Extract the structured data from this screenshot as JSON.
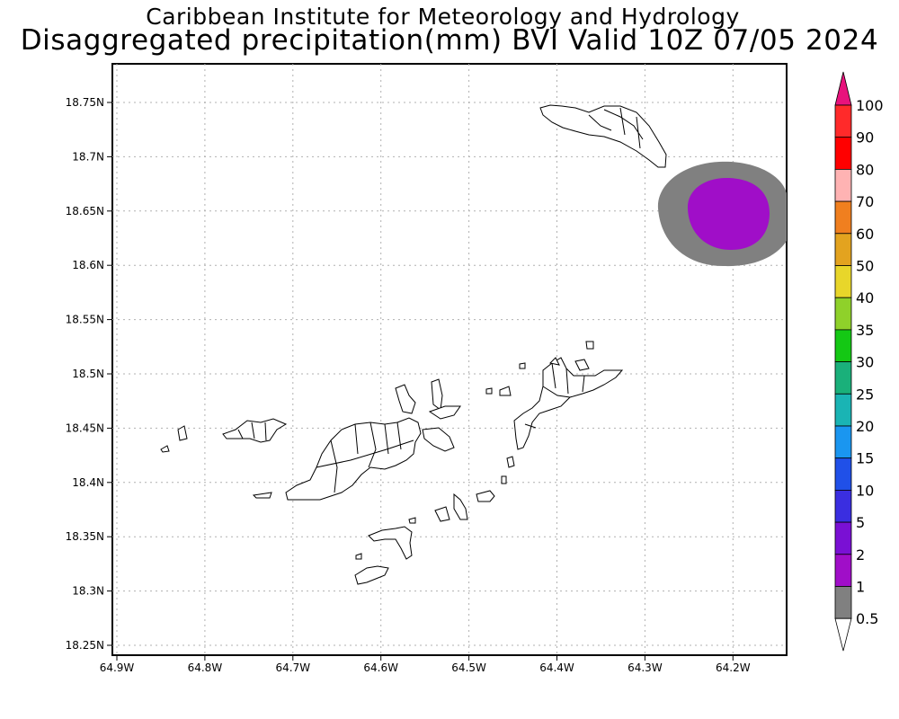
{
  "header": {
    "institute": "Caribbean Institute for Meteorology and Hydrology",
    "product": "Disaggregated precipitation(mm) BVI Valid 10Z 07/05 2024"
  },
  "map": {
    "lat_labels": [
      "18.75N",
      "18.7N",
      "18.65N",
      "18.6N",
      "18.55N",
      "18.5N",
      "18.45N",
      "18.4N",
      "18.35N",
      "18.3N",
      "18.25N"
    ],
    "lon_labels": [
      "64.9W",
      "64.8W",
      "64.7W",
      "64.6W",
      "64.5W",
      "64.4W",
      "64.3W",
      "64.2W"
    ],
    "grid": true,
    "precipitation_area": {
      "center_lon": "64.2W",
      "center_lat": "18.65N",
      "outer_category": "0.5-1 mm",
      "inner_category": "1-2 mm"
    }
  },
  "colorbar": {
    "labels": [
      "100",
      "90",
      "80",
      "70",
      "60",
      "50",
      "40",
      "35",
      "30",
      "25",
      "20",
      "15",
      "10",
      "5",
      "2",
      "1",
      "0.5"
    ],
    "colors": [
      "#e8127c",
      "#ff2a2a",
      "#ff0000",
      "#ffb3b3",
      "#f07f1f",
      "#e3a31f",
      "#e8d62a",
      "#8fd12a",
      "#14c814",
      "#1ab07a",
      "#1ab4b4",
      "#1a96f0",
      "#2050e8",
      "#3a2ee0",
      "#7a10d4",
      "#a00ec8",
      "#808080"
    ]
  }
}
